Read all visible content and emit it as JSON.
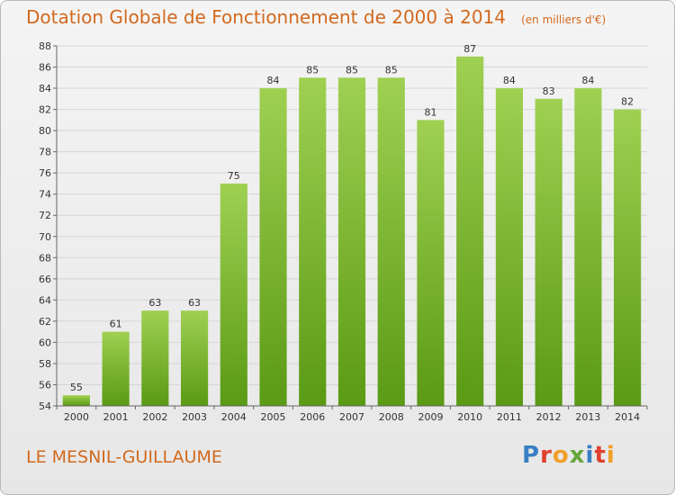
{
  "header": {
    "title": "Dotation Globale de Fonctionnement de 2000 à 2014",
    "unit": "(en milliers d'€)"
  },
  "footer": {
    "commune": "LE MESNIL-GUILLAUME",
    "brand_letters": [
      {
        "char": "P",
        "color": "#3a7fc2"
      },
      {
        "char": "r",
        "color": "#e0402d"
      },
      {
        "char": "o",
        "color": "#f0a028"
      },
      {
        "char": "x",
        "color": "#63a63a"
      },
      {
        "char": "i",
        "color": "#3a7fc2"
      },
      {
        "char": "t",
        "color": "#e0402d"
      },
      {
        "char": "i",
        "color": "#f0a028"
      }
    ]
  },
  "colors": {
    "title": "#d2691e",
    "bar_top": "#9fd052",
    "bar_bottom": "#5a9a14",
    "grid": "#d6d6d6",
    "axis": "#666666",
    "text": "#333333"
  },
  "chart_data": {
    "type": "bar",
    "categories": [
      "2000",
      "2001",
      "2002",
      "2003",
      "2004",
      "2005",
      "2006",
      "2007",
      "2008",
      "2009",
      "2010",
      "2011",
      "2012",
      "2013",
      "2014"
    ],
    "values": [
      55,
      61,
      63,
      63,
      75,
      84,
      85,
      85,
      85,
      81,
      87,
      84,
      83,
      84,
      82
    ],
    "data_labels": [
      "55",
      "61",
      "63",
      "63",
      "75",
      "84",
      "85",
      "85",
      "85",
      "81",
      "87",
      "84",
      "83",
      "84",
      "82"
    ],
    "ylim": [
      54,
      88
    ],
    "yticks": [
      54,
      56,
      58,
      60,
      62,
      64,
      66,
      68,
      70,
      72,
      74,
      76,
      78,
      80,
      82,
      84,
      86,
      88
    ],
    "grid": true,
    "legend": "none"
  }
}
